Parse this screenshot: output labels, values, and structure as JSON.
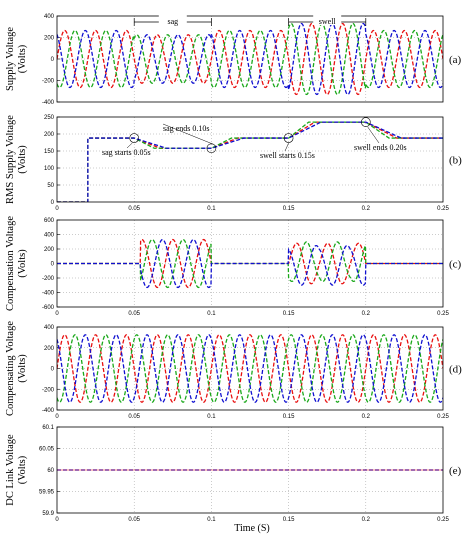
{
  "figure": {
    "xlabel": "Time (S)",
    "colors": {
      "phase_a": "#e81010",
      "phase_b": "#1aa81a",
      "phase_c": "#1010d0"
    }
  },
  "chart_data": [
    {
      "type": "line",
      "panel_label": "(a)",
      "ylabel_line1": "Supply Voltage",
      "ylabel_line2": "(Volts)",
      "ylim": [
        -400,
        400
      ],
      "yticks": [
        "400",
        "200",
        "0",
        "-200",
        "-400"
      ],
      "xlim": [
        0,
        0.25
      ],
      "xticks": [],
      "grid": true,
      "frequency_hz": 50,
      "series": [
        {
          "phase_deg": 0,
          "color": "#e81010"
        },
        {
          "phase_deg": -120,
          "color": "#1aa81a"
        },
        {
          "phase_deg": 120,
          "color": "#1010d0"
        }
      ],
      "amplitude_profile": {
        "normal": 265,
        "sag": 225,
        "swell": 330,
        "sag_start": 0.05,
        "sag_end": 0.1,
        "swell_start": 0.15,
        "swell_end": 0.2
      },
      "annotations": [
        {
          "text": "sag",
          "from": 0.05,
          "to": 0.1
        },
        {
          "text": "swell",
          "from": 0.15,
          "to": 0.2
        }
      ]
    },
    {
      "type": "line",
      "panel_label": "(b)",
      "ylabel_line1": "RMS Supply Voltage",
      "ylabel_line2": "(Volts)",
      "ylim": [
        0,
        250
      ],
      "yticks": [
        "250",
        "200",
        "150",
        "100",
        "50",
        "0"
      ],
      "xlim": [
        0,
        0.25
      ],
      "xticks": [
        "0",
        "0.05",
        "0.1",
        "0.15",
        "0.2",
        "0.25"
      ],
      "grid": true,
      "series": [
        {
          "color": "#e81010",
          "x": [
            0,
            0.02,
            0.02,
            0.05,
            0.067,
            0.1,
            0.117,
            0.15,
            0.167,
            0.2,
            0.22,
            0.25
          ],
          "y": [
            0,
            0,
            188,
            188,
            158,
            158,
            188,
            188,
            235,
            235,
            188,
            188
          ]
        },
        {
          "color": "#1aa81a",
          "x": [
            0,
            0.02,
            0.02,
            0.05,
            0.063,
            0.1,
            0.113,
            0.15,
            0.163,
            0.2,
            0.215,
            0.25
          ],
          "y": [
            0,
            0,
            188,
            188,
            158,
            158,
            188,
            188,
            235,
            235,
            188,
            188
          ]
        },
        {
          "color": "#1010d0",
          "x": [
            0,
            0.02,
            0.02,
            0.05,
            0.071,
            0.1,
            0.121,
            0.15,
            0.171,
            0.2,
            0.223,
            0.25
          ],
          "y": [
            0,
            0,
            188,
            188,
            158,
            158,
            188,
            188,
            235,
            235,
            188,
            188
          ]
        }
      ],
      "annotations": [
        {
          "text": "sag starts 0.05s",
          "x": 0.05,
          "y": 188
        },
        {
          "text": "sag ends 0.10s",
          "x": 0.1,
          "y": 158
        },
        {
          "text": "swell starts 0.15s",
          "x": 0.15,
          "y": 188
        },
        {
          "text": "swell ends 0.20s",
          "x": 0.2,
          "y": 235
        }
      ]
    },
    {
      "type": "line",
      "panel_label": "(c)",
      "ylabel_line1": "Compensation Voltage",
      "ylabel_line2": "(Volts)",
      "ylim": [
        -600,
        600
      ],
      "yticks": [
        "600",
        "400",
        "200",
        "0",
        "-200",
        "-400",
        "-600"
      ],
      "xlim": [
        0,
        0.25
      ],
      "xticks": [
        "0",
        "0.05",
        "0.1",
        "0.15",
        "0.2",
        "0.25"
      ],
      "grid": true,
      "frequency_hz": 50,
      "series": [
        {
          "phase_deg": 0,
          "color": "#e81010"
        },
        {
          "phase_deg": -120,
          "color": "#1aa81a"
        },
        {
          "phase_deg": 120,
          "color": "#1010d0"
        }
      ],
      "amplitude_profile": {
        "sag_amp": 330,
        "swell_amp": 300,
        "sag_start": 0.05,
        "sag_end": 0.1,
        "swell_start": 0.15,
        "swell_end": 0.2
      }
    },
    {
      "type": "line",
      "panel_label": "(d)",
      "ylabel_line1": "Compensating Voltage",
      "ylabel_line2": "(Volts)",
      "ylim": [
        -400,
        400
      ],
      "yticks": [
        "400",
        "200",
        "0",
        "-200",
        "-400"
      ],
      "xlim": [
        0,
        0.25
      ],
      "xticks": [
        "0",
        "0.05",
        "0.1",
        "0.15",
        "0.2",
        "0.25"
      ],
      "grid": true,
      "frequency_hz": 50,
      "series": [
        {
          "phase_deg": 0,
          "color": "#e81010"
        },
        {
          "phase_deg": -120,
          "color": "#1aa81a"
        },
        {
          "phase_deg": 120,
          "color": "#1010d0"
        }
      ],
      "amplitude": 325
    },
    {
      "type": "line",
      "panel_label": "(e)",
      "ylabel_line1": "DC Link Voltage",
      "ylabel_line2": "(Volts)",
      "ylim": [
        59.9,
        60.1
      ],
      "yticks": [
        "60.1",
        "60.05",
        "60",
        "59.95",
        "59.9"
      ],
      "xlim": [
        0,
        0.25
      ],
      "xticks": [
        "0",
        "0.05",
        "0.1",
        "0.15",
        "0.2",
        "0.25"
      ],
      "grid": true,
      "series": [
        {
          "color": "#1010d0",
          "x": [
            0,
            0.25
          ],
          "y": [
            60,
            60
          ]
        }
      ]
    }
  ]
}
